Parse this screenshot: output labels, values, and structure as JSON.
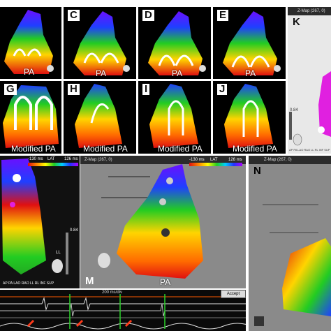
{
  "panels": [
    {
      "id": "b",
      "letter": "",
      "caption": "PA"
    },
    {
      "id": "c",
      "letter": "C",
      "caption": "PA"
    },
    {
      "id": "d",
      "letter": "D",
      "caption": "PA"
    },
    {
      "id": "e",
      "letter": "E",
      "caption": "PA"
    },
    {
      "id": "k",
      "letter": "K",
      "header": "Z-Map (267, 0)"
    },
    {
      "id": "g",
      "letter": "G",
      "caption": "Modified PA"
    },
    {
      "id": "h",
      "letter": "H",
      "caption": "Modified PA"
    },
    {
      "id": "i",
      "letter": "I",
      "caption": "Modified PA"
    },
    {
      "id": "j",
      "letter": "J",
      "caption": "Modified PA"
    },
    {
      "id": "l",
      "letter": ""
    },
    {
      "id": "m",
      "letter": "M",
      "header": "Z-Map (267, 0)",
      "caption": "PA"
    },
    {
      "id": "n",
      "letter": "N",
      "header": "Z-Map (267, 0)"
    }
  ],
  "lat_bar": {
    "l": {
      "min": "-130 ms",
      "title": "LAT",
      "max": "126 ms"
    },
    "m": {
      "min": "-130 ms",
      "title": "LAT",
      "max": "126 ms"
    }
  },
  "k_panel": {
    "value": "0.84",
    "views": "AP PA LAO RAO LL RL INF SUP"
  },
  "l_panel": {
    "views": "AP PA LAO RAO LL RL INF SUP",
    "ll": "LL",
    "value": "0.84"
  },
  "ecg": {
    "timebar": "200 ms/div",
    "button": "Accept"
  },
  "colors": {
    "bg": "#000000",
    "red": "#e01010",
    "green": "#22cc22",
    "blue": "#1f3fff",
    "magenta": "#e020e0",
    "arrow": "#ff3a1a"
  }
}
